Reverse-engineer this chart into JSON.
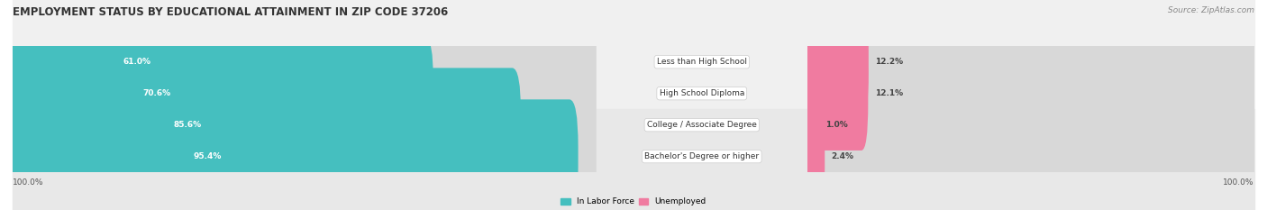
{
  "title": "EMPLOYMENT STATUS BY EDUCATIONAL ATTAINMENT IN ZIP CODE 37206",
  "source": "Source: ZipAtlas.com",
  "categories": [
    "Less than High School",
    "High School Diploma",
    "College / Associate Degree",
    "Bachelor's Degree or higher"
  ],
  "labor_force": [
    61.0,
    70.6,
    85.6,
    95.4
  ],
  "unemployed": [
    12.2,
    12.1,
    1.0,
    2.4
  ],
  "labor_force_color": "#45BFBF",
  "unemployed_color": "#F07BA0",
  "row_bg_even": "#F0F0F0",
  "row_bg_odd": "#E8E8E8",
  "bg_track_color": "#DCDCDC",
  "axis_label_left": "100.0%",
  "axis_label_right": "100.0%",
  "max_lf": 100.0,
  "max_un": 100.0,
  "figsize": [
    14.06,
    2.33
  ],
  "dpi": 100,
  "title_fontsize": 8.5,
  "source_fontsize": 6.5,
  "bar_label_fontsize": 6.5,
  "category_fontsize": 6.5,
  "axis_label_fontsize": 6.5,
  "legend_fontsize": 6.5
}
